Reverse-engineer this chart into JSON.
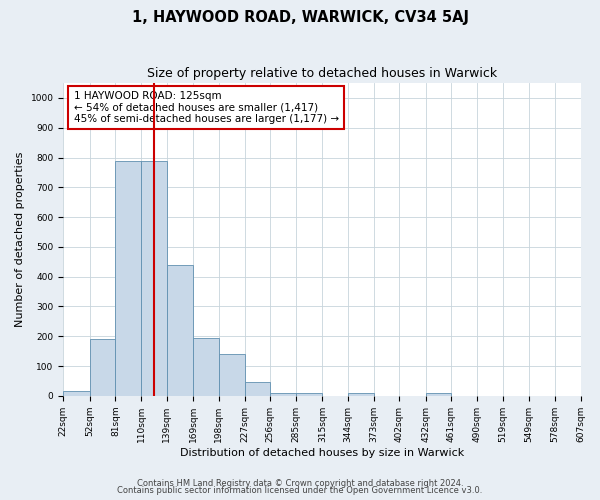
{
  "title": "1, HAYWOOD ROAD, WARWICK, CV34 5AJ",
  "subtitle": "Size of property relative to detached houses in Warwick",
  "xlabel": "Distribution of detached houses by size in Warwick",
  "ylabel": "Number of detached properties",
  "bar_edges": [
    22,
    52,
    81,
    110,
    139,
    169,
    198,
    227,
    256,
    285,
    315,
    344,
    373,
    402,
    432,
    461,
    490,
    519,
    549,
    578,
    607
  ],
  "bar_heights": [
    15,
    190,
    790,
    790,
    440,
    195,
    140,
    48,
    10,
    10,
    0,
    10,
    0,
    0,
    10,
    0,
    0,
    0,
    0,
    0
  ],
  "bar_color": "#c8d8e8",
  "bar_edge_color": "#6090b0",
  "vline_x": 125,
  "vline_color": "#cc0000",
  "annotation_box_text": "1 HAYWOOD ROAD: 125sqm\n← 54% of detached houses are smaller (1,417)\n45% of semi-detached houses are larger (1,177) →",
  "annotation_box_color": "#cc0000",
  "ylim": [
    0,
    1050
  ],
  "yticks": [
    0,
    100,
    200,
    300,
    400,
    500,
    600,
    700,
    800,
    900,
    1000
  ],
  "tick_labels": [
    "22sqm",
    "52sqm",
    "81sqm",
    "110sqm",
    "139sqm",
    "169sqm",
    "198sqm",
    "227sqm",
    "256sqm",
    "285sqm",
    "315sqm",
    "344sqm",
    "373sqm",
    "402sqm",
    "432sqm",
    "461sqm",
    "490sqm",
    "519sqm",
    "549sqm",
    "578sqm",
    "607sqm"
  ],
  "footer_line1": "Contains HM Land Registry data © Crown copyright and database right 2024.",
  "footer_line2": "Contains public sector information licensed under the Open Government Licence v3.0.",
  "background_color": "#e8eef4",
  "plot_background_color": "#ffffff",
  "grid_color": "#c8d4dc",
  "title_fontsize": 10.5,
  "subtitle_fontsize": 9,
  "axis_label_fontsize": 8,
  "tick_fontsize": 6.5,
  "footer_fontsize": 6,
  "annotation_fontsize": 7.5
}
